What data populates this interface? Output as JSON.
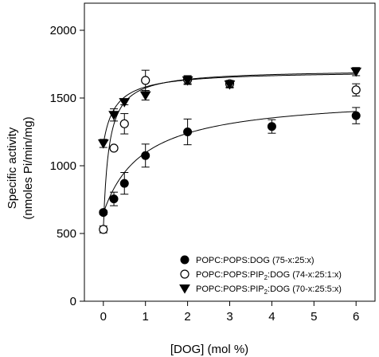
{
  "chart_data": {
    "type": "scatter",
    "xlabel": "[DOG]  (mol %)",
    "ylabel_line1": "Specific activity",
    "ylabel_line2": "(nmoles Pi/min/mg)",
    "xlim": [
      -0.45,
      6.45
    ],
    "ylim": [
      0,
      2200
    ],
    "x_ticks": [
      0,
      1,
      2,
      3,
      4,
      5,
      6
    ],
    "y_ticks": [
      0,
      500,
      1000,
      1500,
      2000
    ],
    "grid": false,
    "legend_position": "bottom-right",
    "series": [
      {
        "name": "POPC:POPS:DOG (75-x:25:x)",
        "marker": "filled-circle",
        "x": [
          0,
          0.25,
          0.5,
          1,
          2,
          4,
          6
        ],
        "y": [
          655,
          755,
          870,
          1075,
          1250,
          1290,
          1370
        ],
        "err": [
          15,
          50,
          80,
          85,
          95,
          50,
          60
        ],
        "fit": {
          "y0": 650,
          "vmax": 870,
          "k": 0.95
        }
      },
      {
        "name": "POPC:POPS:PIP2:DOG (74-x:25:1:x)",
        "marker": "open-circle",
        "x": [
          0,
          0.25,
          0.5,
          1,
          2,
          3,
          6
        ],
        "y": [
          530,
          1130,
          1310,
          1630,
          1635,
          1605,
          1560
        ],
        "err": [
          25,
          15,
          75,
          75,
          30,
          25,
          45
        ],
        "fit": {
          "y0": 530,
          "vmax": 1180,
          "k": 0.13
        }
      },
      {
        "name": "POPC:POPS:PIP2:DOG (70-x:25:5:x)",
        "marker": "filled-triangle-down",
        "x": [
          0,
          0.25,
          0.5,
          1,
          2,
          3,
          6
        ],
        "y": [
          1165,
          1375,
          1470,
          1520,
          1630,
          1600,
          1695
        ],
        "err": [
          30,
          45,
          20,
          35,
          30,
          25,
          30
        ],
        "fit": {
          "y0": 1160,
          "vmax": 540,
          "k": 0.28
        }
      }
    ]
  }
}
